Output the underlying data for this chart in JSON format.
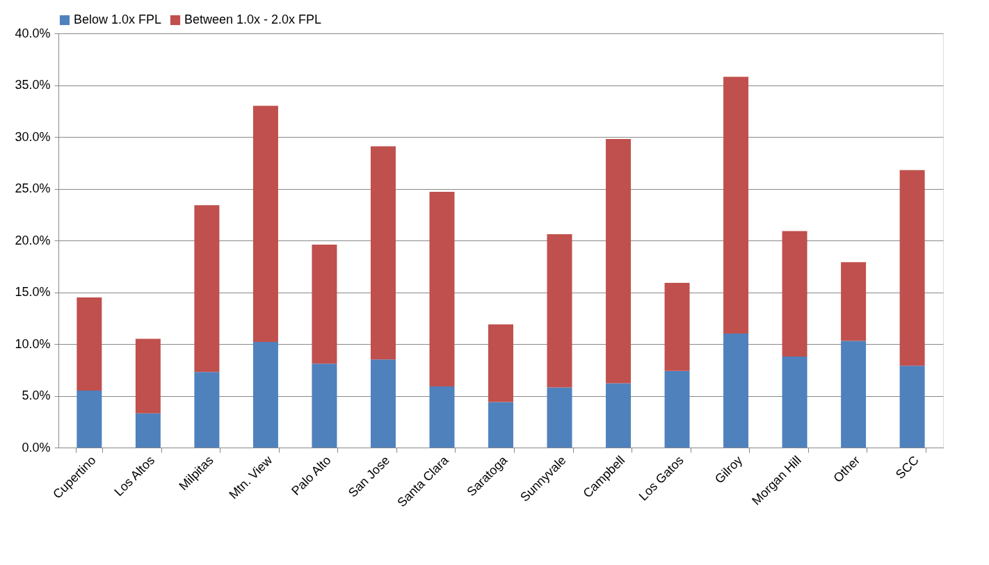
{
  "chart_data": {
    "type": "bar",
    "stacked": true,
    "categories": [
      "Cupertino",
      "Los Altos",
      "Milpitas",
      "Mtn. View",
      "Palo Alto",
      "San Jose",
      "Santa Clara",
      "Saratoga",
      "Sunnyvale",
      "Campbell",
      "Los Gatos",
      "Gilroy",
      "Morgan Hill",
      "Other",
      "SCC"
    ],
    "series": [
      {
        "name": "Below 1.0x FPL",
        "color": "#4f81bd",
        "values": [
          5.5,
          3.3,
          7.3,
          10.2,
          8.1,
          8.5,
          5.9,
          4.4,
          5.8,
          6.2,
          7.4,
          11.0,
          8.8,
          10.3,
          7.9
        ]
      },
      {
        "name": "Between 1.0x - 2.0x FPL",
        "color": "#c0504d",
        "values": [
          9.0,
          7.2,
          16.1,
          22.8,
          11.5,
          20.6,
          18.8,
          7.5,
          14.8,
          23.6,
          8.5,
          24.8,
          12.1,
          7.6,
          18.9
        ]
      }
    ],
    "ylim": [
      0,
      40
    ],
    "yticks": [
      {
        "value": 0,
        "label": "0.0%"
      },
      {
        "value": 5,
        "label": "5.0%"
      },
      {
        "value": 10,
        "label": "10.0%"
      },
      {
        "value": 15,
        "label": "15.0%"
      },
      {
        "value": 20,
        "label": "20.0%"
      },
      {
        "value": 25,
        "label": "25.0%"
      },
      {
        "value": 30,
        "label": "30.0%"
      },
      {
        "value": 35,
        "label": "35.0%"
      },
      {
        "value": 40,
        "label": "40.0%"
      }
    ],
    "grid": "y",
    "legend": "top"
  }
}
